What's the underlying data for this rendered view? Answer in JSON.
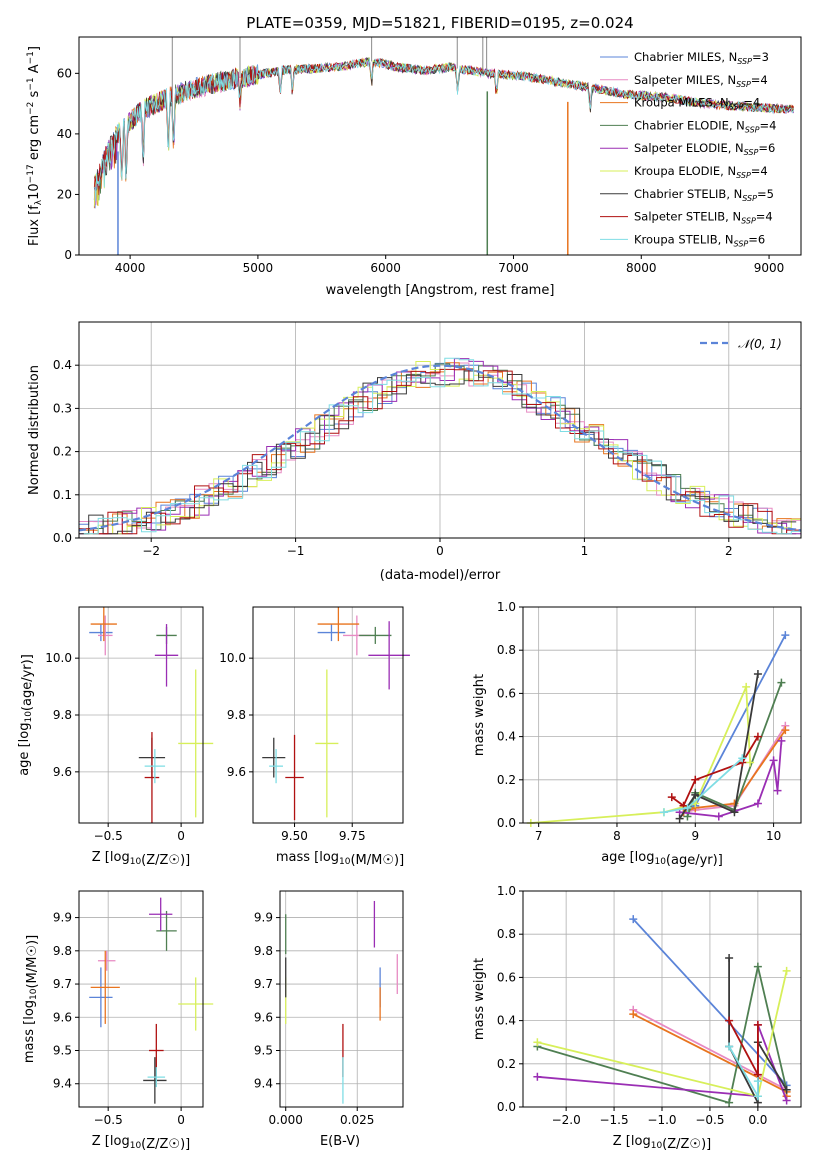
{
  "title": "PLATE=0359, MJD=51821, FIBERID=0195, z=0.024",
  "models": [
    {
      "name": "Chabrier MILES",
      "nssp": "3",
      "color": "#5b84d8"
    },
    {
      "name": "Salpeter MILES",
      "nssp": "4",
      "color": "#e78ac3"
    },
    {
      "name": "Kroupa MILES",
      "nssp": "4",
      "color": "#e8741f"
    },
    {
      "name": "Chabrier ELODIE",
      "nssp": "4",
      "color": "#4f7f52"
    },
    {
      "name": "Salpeter ELODIE",
      "nssp": "6",
      "color": "#9a2eb4"
    },
    {
      "name": "Kroupa ELODIE",
      "nssp": "4",
      "color": "#d7ef5a"
    },
    {
      "name": "Chabrier STELIB",
      "nssp": "5",
      "color": "#3a3a3a"
    },
    {
      "name": "Salpeter STELIB",
      "nssp": "4",
      "color": "#b01111"
    },
    {
      "name": "Kroupa STELIB",
      "nssp": "6",
      "color": "#7fdde4"
    }
  ],
  "chart_data": [
    {
      "id": "spectrum",
      "type": "line",
      "xlabel": "wavelength [Angstrom, rest frame]",
      "ylabel": "Flux [f_λ10^-17 erg cm^-2 s^-1 A^-1]",
      "xlim": [
        3600,
        9250
      ],
      "ylim": [
        0,
        72
      ],
      "xticks": [
        4000,
        5000,
        6000,
        7000,
        8000,
        9000
      ],
      "yticks": [
        0,
        20,
        40,
        60
      ],
      "grid": false,
      "legend": "top-right",
      "continuum": [
        [
          3720,
          22
        ],
        [
          3800,
          32
        ],
        [
          3900,
          40
        ],
        [
          4000,
          44
        ],
        [
          4100,
          48
        ],
        [
          4300,
          52
        ],
        [
          4500,
          55
        ],
        [
          4800,
          58
        ],
        [
          5200,
          61
        ],
        [
          5600,
          62
        ],
        [
          5900,
          64
        ],
        [
          6100,
          62
        ],
        [
          6300,
          61
        ],
        [
          6500,
          62
        ],
        [
          6800,
          60
        ],
        [
          7100,
          59
        ],
        [
          7500,
          56
        ],
        [
          7900,
          53
        ],
        [
          8200,
          52
        ],
        [
          8500,
          50
        ],
        [
          8800,
          49
        ],
        [
          9200,
          48
        ]
      ],
      "drops": [
        {
          "model": "Chabrier MILES",
          "x": 3905,
          "y": 0
        },
        {
          "model": "Chabrier ELODIE",
          "x": 6795,
          "y": 0
        },
        {
          "model": "Kroupa MILES",
          "x": 7425,
          "y": 0
        }
      ],
      "spikes": [
        {
          "x": 4330,
          "y": 72
        },
        {
          "x": 4860,
          "y": 72
        },
        {
          "x": 5890,
          "y": 72
        },
        {
          "x": 6560,
          "y": 72
        },
        {
          "x": 6760,
          "y": 72
        },
        {
          "x": 6790,
          "y": 72
        }
      ]
    },
    {
      "id": "residuals",
      "type": "histogram",
      "xlabel": "(data-model)/error",
      "ylabel": "Normed distribution",
      "xlim": [
        -2.5,
        2.5
      ],
      "ylim": [
        0,
        0.5
      ],
      "xticks": [
        -2,
        -1,
        0,
        1,
        2
      ],
      "yticks": [
        0.0,
        0.1,
        0.2,
        0.3,
        0.4
      ],
      "grid": true,
      "legend": "top-right",
      "normal_label": "𝒩(0, 1)",
      "normal_color": "#5b84d8"
    },
    {
      "id": "age_vs_Z",
      "type": "errorbar",
      "xlabel": "Z [log10(Z/Z☉)]",
      "ylabel": "age  [log10(age/yr)]",
      "xlim": [
        -0.7,
        0.15
      ],
      "ylim": [
        9.42,
        10.18
      ],
      "xticks": [
        -0.5,
        0.0
      ],
      "yticks": [
        9.6,
        9.8,
        10.0
      ],
      "grid": true,
      "points": [
        {
          "model": "Chabrier MILES",
          "x": -0.55,
          "y": 10.09,
          "xe": 0.08,
          "ye": 0.03
        },
        {
          "model": "Salpeter MILES",
          "x": -0.52,
          "y": 10.08,
          "xe": 0.05,
          "ye": 0.07
        },
        {
          "model": "Kroupa MILES",
          "x": -0.53,
          "y": 10.12,
          "xe": 0.09,
          "ye": 0.06
        },
        {
          "model": "Chabrier ELODIE",
          "x": -0.1,
          "y": 10.08,
          "xe": 0.07,
          "ye": 0.03
        },
        {
          "model": "Salpeter ELODIE",
          "x": -0.1,
          "y": 10.01,
          "xe": 0.08,
          "ye": 0.11
        },
        {
          "model": "Kroupa ELODIE",
          "x": 0.1,
          "y": 9.7,
          "xe": 0.12,
          "ye": 0.26
        },
        {
          "model": "Chabrier STELIB",
          "x": -0.2,
          "y": 9.65,
          "xe": 0.09,
          "ye": 0.07
        },
        {
          "model": "Salpeter STELIB",
          "x": -0.2,
          "y": 9.58,
          "xe": 0.05,
          "ye": 0.16
        },
        {
          "model": "Kroupa STELIB",
          "x": -0.18,
          "y": 9.62,
          "xe": 0.07,
          "ye": 0.06
        }
      ]
    },
    {
      "id": "age_vs_mass",
      "type": "errorbar",
      "xlabel": "mass [log10(M/M☉)]",
      "ylabel": "",
      "xlim": [
        9.32,
        9.97
      ],
      "ylim": [
        9.42,
        10.18
      ],
      "xticks": [
        9.5,
        9.75
      ],
      "yticks": [
        9.6,
        9.8,
        10.0
      ],
      "grid": true,
      "points": [
        {
          "model": "Chabrier MILES",
          "x": 9.66,
          "y": 10.09,
          "xe": 0.06,
          "ye": 0.03
        },
        {
          "model": "Salpeter MILES",
          "x": 9.77,
          "y": 10.08,
          "xe": 0.06,
          "ye": 0.07
        },
        {
          "model": "Kroupa MILES",
          "x": 9.69,
          "y": 10.12,
          "xe": 0.09,
          "ye": 0.06
        },
        {
          "model": "Chabrier ELODIE",
          "x": 9.85,
          "y": 10.08,
          "xe": 0.07,
          "ye": 0.03
        },
        {
          "model": "Salpeter ELODIE",
          "x": 9.91,
          "y": 10.01,
          "xe": 0.09,
          "ye": 0.12
        },
        {
          "model": "Kroupa ELODIE",
          "x": 9.64,
          "y": 9.7,
          "xe": 0.05,
          "ye": 0.26
        },
        {
          "model": "Chabrier STELIB",
          "x": 9.41,
          "y": 9.65,
          "xe": 0.05,
          "ye": 0.07
        },
        {
          "model": "Salpeter STELIB",
          "x": 9.5,
          "y": 9.58,
          "xe": 0.04,
          "ye": 0.15
        },
        {
          "model": "Kroupa STELIB",
          "x": 9.42,
          "y": 9.62,
          "xe": 0.03,
          "ye": 0.06
        }
      ]
    },
    {
      "id": "weight_vs_age",
      "type": "line",
      "xlabel": "age  [log10(age/yr)]",
      "ylabel": "mass weight",
      "xlim": [
        6.8,
        10.35
      ],
      "ylim": [
        0,
        1
      ],
      "xticks": [
        7,
        8,
        9,
        10
      ],
      "yticks": [
        0.0,
        0.2,
        0.4,
        0.6,
        0.8,
        1.0
      ],
      "grid": true,
      "series": [
        {
          "model": "Chabrier MILES",
          "x": [
            8.85,
            9.0,
            10.15
          ],
          "y": [
            0.05,
            0.08,
            0.87
          ]
        },
        {
          "model": "Salpeter MILES",
          "x": [
            8.85,
            9.0,
            9.5,
            10.15
          ],
          "y": [
            0.05,
            0.06,
            0.08,
            0.45
          ]
        },
        {
          "model": "Kroupa MILES",
          "x": [
            8.85,
            9.0,
            9.5,
            10.15
          ],
          "y": [
            0.05,
            0.07,
            0.09,
            0.43
          ]
        },
        {
          "model": "Chabrier ELODIE",
          "x": [
            8.9,
            9.0,
            9.5,
            10.1
          ],
          "y": [
            0.03,
            0.14,
            0.06,
            0.65
          ]
        },
        {
          "model": "Salpeter ELODIE",
          "x": [
            8.8,
            9.3,
            9.8,
            10.0,
            10.05,
            10.1
          ],
          "y": [
            0.05,
            0.03,
            0.09,
            0.29,
            0.15,
            0.38
          ]
        },
        {
          "model": "Kroupa ELODIE",
          "x": [
            6.9,
            8.6,
            9.0,
            9.65,
            9.7
          ],
          "y": [
            0.0,
            0.05,
            0.09,
            0.63,
            0.28
          ]
        },
        {
          "model": "Chabrier STELIB",
          "x": [
            8.8,
            9.0,
            9.5,
            9.8
          ],
          "y": [
            0.02,
            0.13,
            0.05,
            0.69
          ]
        },
        {
          "model": "Salpeter STELIB",
          "x": [
            8.7,
            8.85,
            9.0,
            9.6,
            9.8
          ],
          "y": [
            0.12,
            0.08,
            0.2,
            0.28,
            0.4
          ]
        },
        {
          "model": "Kroupa STELIB",
          "x": [
            8.6,
            8.9,
            9.6
          ],
          "y": [
            0.05,
            0.07,
            0.3
          ]
        }
      ]
    },
    {
      "id": "mass_vs_Z",
      "type": "errorbar",
      "xlabel": "Z [log10(Z/Z☉)]",
      "ylabel": "mass [log10(M/M☉)]",
      "xlim": [
        -0.7,
        0.15
      ],
      "ylim": [
        9.33,
        9.98
      ],
      "xticks": [
        -0.5,
        0.0
      ],
      "yticks": [
        9.4,
        9.5,
        9.6,
        9.7,
        9.8,
        9.9
      ],
      "grid": true,
      "points": [
        {
          "model": "Chabrier MILES",
          "x": -0.55,
          "y": 9.66,
          "xe": 0.08,
          "ye": 0.09
        },
        {
          "model": "Salpeter MILES",
          "x": -0.51,
          "y": 9.77,
          "xe": 0.06,
          "ye": 0.03
        },
        {
          "model": "Kroupa MILES",
          "x": -0.52,
          "y": 9.69,
          "xe": 0.1,
          "ye": 0.11
        },
        {
          "model": "Chabrier ELODIE",
          "x": -0.1,
          "y": 9.86,
          "xe": 0.07,
          "ye": 0.06
        },
        {
          "model": "Salpeter ELODIE",
          "x": -0.14,
          "y": 9.91,
          "xe": 0.08,
          "ye": 0.05
        },
        {
          "model": "Kroupa ELODIE",
          "x": 0.1,
          "y": 9.64,
          "xe": 0.12,
          "ye": 0.08
        },
        {
          "model": "Chabrier STELIB",
          "x": -0.18,
          "y": 9.41,
          "xe": 0.08,
          "ye": 0.07
        },
        {
          "model": "Salpeter STELIB",
          "x": -0.17,
          "y": 9.5,
          "xe": 0.05,
          "ye": 0.08
        },
        {
          "model": "Kroupa STELIB",
          "x": -0.17,
          "y": 9.42,
          "xe": 0.06,
          "ye": 0.03
        }
      ]
    },
    {
      "id": "mass_vs_EBV",
      "type": "errorbar",
      "xlabel": "E(B-V)",
      "ylabel": "",
      "xlim": [
        -0.002,
        0.041
      ],
      "ylim": [
        9.33,
        9.98
      ],
      "xticks": [
        0.0,
        0.025
      ],
      "yticks": [
        9.4,
        9.5,
        9.6,
        9.7,
        9.8,
        9.9
      ],
      "grid": true,
      "points": [
        {
          "model": "Chabrier MILES",
          "x": 0.033,
          "y": 9.69,
          "xe": 0,
          "ye": 0.06
        },
        {
          "model": "Salpeter MILES",
          "x": 0.039,
          "y": 9.73,
          "xe": 0,
          "ye": 0.06
        },
        {
          "model": "Kroupa MILES",
          "x": 0.033,
          "y": 9.64,
          "xe": 0,
          "ye": 0.05
        },
        {
          "model": "Chabrier ELODIE",
          "x": 0.0,
          "y": 9.85,
          "xe": 0,
          "ye": 0.06
        },
        {
          "model": "Salpeter ELODIE",
          "x": 0.031,
          "y": 9.88,
          "xe": 0,
          "ye": 0.07
        },
        {
          "model": "Kroupa ELODIE",
          "x": 0.0,
          "y": 9.65,
          "xe": 0,
          "ye": 0.07
        },
        {
          "model": "Chabrier STELIB",
          "x": 0.0,
          "y": 9.72,
          "xe": 0,
          "ye": 0.06
        },
        {
          "model": "Salpeter STELIB",
          "x": 0.02,
          "y": 9.5,
          "xe": 0,
          "ye": 0.08
        },
        {
          "model": "Kroupa STELIB",
          "x": 0.02,
          "y": 9.41,
          "xe": 0,
          "ye": 0.07
        }
      ]
    },
    {
      "id": "weight_vs_Z",
      "type": "line",
      "xlabel": "Z [log10(Z/Z☉)]",
      "ylabel": "mass weight",
      "xlim": [
        -2.45,
        0.45
      ],
      "ylim": [
        0,
        1
      ],
      "xticks": [
        -2.0,
        -1.5,
        -1.0,
        -0.5,
        0.0
      ],
      "yticks": [
        0.0,
        0.2,
        0.4,
        0.6,
        0.8,
        1.0
      ],
      "grid": true,
      "series": [
        {
          "model": "Chabrier MILES",
          "x": [
            -1.3,
            0.3,
            0.3
          ],
          "y": [
            0.87,
            0.1,
            0.05
          ]
        },
        {
          "model": "Salpeter MILES",
          "x": [
            -1.3,
            0.3,
            0.3
          ],
          "y": [
            0.45,
            0.08,
            0.05
          ]
        },
        {
          "model": "Kroupa MILES",
          "x": [
            -1.3,
            0.3,
            0.3
          ],
          "y": [
            0.43,
            0.07,
            0.05
          ]
        },
        {
          "model": "Chabrier ELODIE",
          "x": [
            -2.3,
            -0.3,
            0.0,
            0.3
          ],
          "y": [
            0.28,
            0.02,
            0.65,
            0.08
          ]
        },
        {
          "model": "Salpeter ELODIE",
          "x": [
            -2.3,
            0.0,
            0.0,
            0.3
          ],
          "y": [
            0.14,
            0.05,
            0.38,
            0.03
          ]
        },
        {
          "model": "Kroupa ELODIE",
          "x": [
            -2.3,
            0.0,
            0.3
          ],
          "y": [
            0.3,
            0.05,
            0.63
          ]
        },
        {
          "model": "Chabrier STELIB",
          "x": [
            -0.3,
            -0.3,
            0.0,
            0.0,
            0.3
          ],
          "y": [
            0.69,
            0.28,
            0.02,
            0.3,
            0.08
          ]
        },
        {
          "model": "Salpeter STELIB",
          "x": [
            -0.3,
            0.0,
            0.0
          ],
          "y": [
            0.4,
            0.15,
            0.38
          ]
        },
        {
          "model": "Kroupa STELIB",
          "x": [
            -0.3,
            0.0,
            0.0
          ],
          "y": [
            0.28,
            0.05,
            0.12
          ]
        }
      ]
    }
  ]
}
